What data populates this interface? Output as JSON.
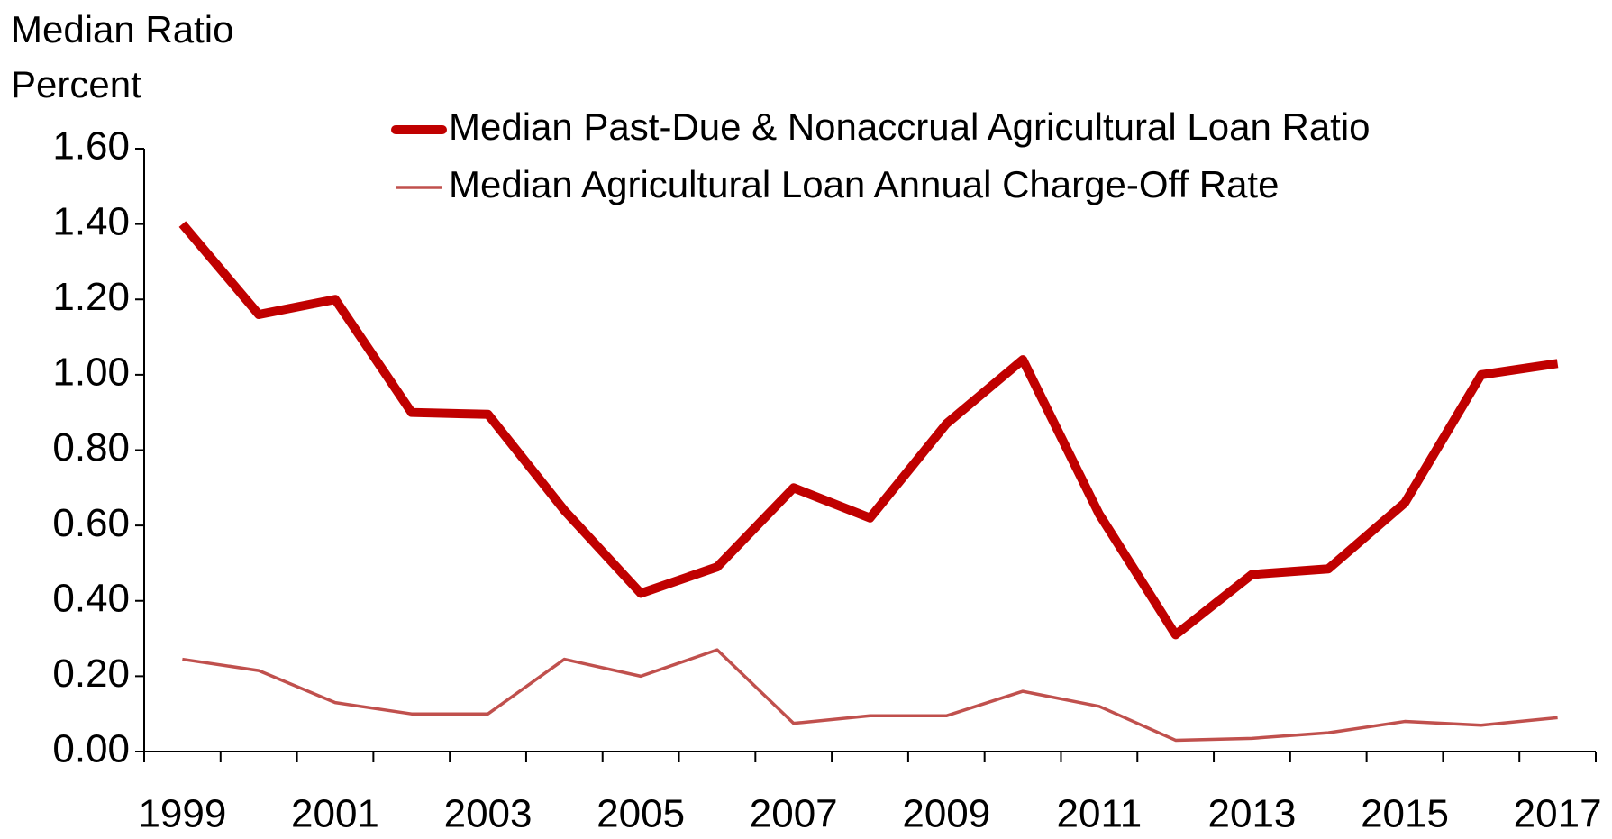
{
  "chart_data": {
    "type": "line",
    "title_lines": [
      "Median Ratio",
      "Percent"
    ],
    "categories": [
      "1999",
      null,
      "2001",
      null,
      "2003",
      null,
      "2005",
      null,
      "2007",
      null,
      "2009",
      null,
      "2011",
      null,
      "2013",
      null,
      "2015",
      null,
      "2017"
    ],
    "series": [
      {
        "name": "Median Past-Due & Nonaccrual Agricultural Loan Ratio",
        "color": "#c00000",
        "width": "thick",
        "values": [
          1.4,
          1.16,
          1.2,
          0.9,
          0.895,
          0.64,
          0.42,
          0.49,
          0.7,
          0.62,
          0.87,
          1.04,
          0.63,
          0.31,
          0.47,
          0.485,
          0.66,
          1.0,
          1.03
        ]
      },
      {
        "name": "Median Agricultural Loan Annual Charge-Off Rate",
        "color": "#c0504d",
        "width": "thin",
        "values": [
          0.245,
          0.215,
          0.13,
          0.1,
          0.1,
          0.245,
          0.2,
          0.27,
          0.075,
          0.095,
          0.095,
          0.16,
          0.12,
          0.03,
          0.035,
          0.05,
          0.08,
          0.07,
          0.09
        ]
      }
    ],
    "ylim": [
      0,
      1.6
    ],
    "yticks": [
      {
        "value": 0,
        "label": "0.00"
      },
      {
        "value": 0.2,
        "label": "0.20"
      },
      {
        "value": 0.4,
        "label": "0.40"
      },
      {
        "value": 0.6,
        "label": "0.60"
      },
      {
        "value": 0.8,
        "label": "0.80"
      },
      {
        "value": 1.0,
        "label": "1.00"
      },
      {
        "value": 1.2,
        "label": "1.20"
      },
      {
        "value": 1.4,
        "label": "1.40"
      },
      {
        "value": 1.6,
        "label": "1.60"
      }
    ],
    "grid": false,
    "legend": "top"
  }
}
